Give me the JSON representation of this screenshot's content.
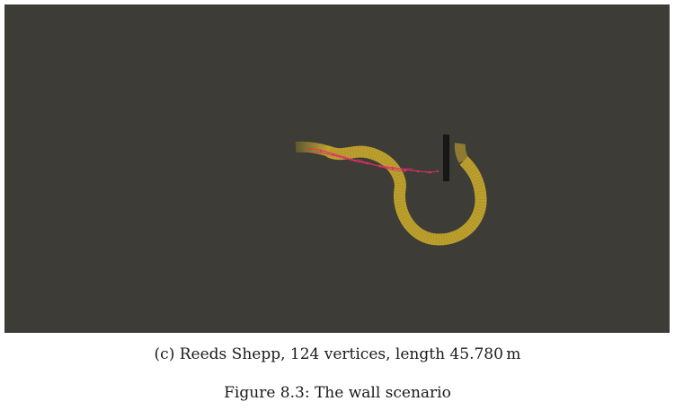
{
  "figure": {
    "subcaption": "(c) Reeds Shepp, 124 vertices, length 45.780 m",
    "caption": "Figure 8.3: The wall scenario",
    "colors": {
      "background": "#3d3c36",
      "path": "#c4a52e",
      "tree": "#e0306a",
      "wall": "#161616"
    }
  }
}
